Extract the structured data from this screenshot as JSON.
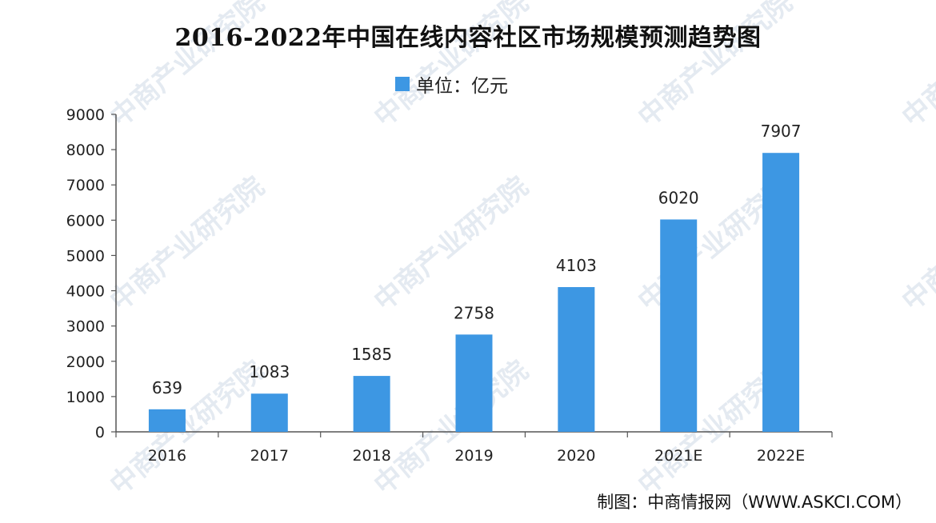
{
  "title": "2016-2022年中国在线内容社区市场规模预测趋势图",
  "legend_label": "单位：亿元",
  "source": "制图：中商情报网（WWW.ASKCI.COM）",
  "watermark": "中商产业研究院",
  "colors": {
    "bar": "#3d97e3",
    "axis": "#555555",
    "text": "#222222"
  },
  "chart_data": {
    "type": "bar",
    "categories": [
      "2016",
      "2017",
      "2018",
      "2019",
      "2020",
      "2021E",
      "2022E"
    ],
    "values": [
      639,
      1083,
      1585,
      2758,
      4103,
      6020,
      7907
    ],
    "data_labels": [
      "639",
      "1083",
      "1585",
      "2758",
      "4103",
      "6020",
      "7907"
    ],
    "title": "2016-2022年中国在线内容社区市场规模预测趋势图",
    "ylabel": "",
    "xlabel": "",
    "ylim": [
      0,
      9000
    ],
    "yticks": [
      0,
      1000,
      2000,
      3000,
      4000,
      5000,
      6000,
      7000,
      8000,
      9000
    ],
    "grid": false,
    "legend": "top-center"
  }
}
